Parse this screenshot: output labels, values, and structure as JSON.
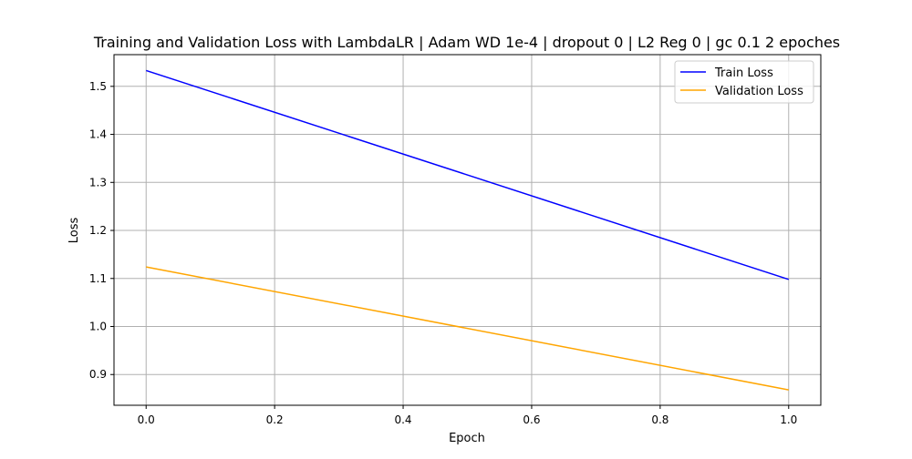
{
  "chart_data": {
    "type": "line",
    "title": "Training and Validation Loss with LambdaLR | Adam WD 1e-4 | dropout 0 | L2 Reg 0 | gc 0.1 2 epoches",
    "xlabel": "Epoch",
    "ylabel": "Loss",
    "xlim": [
      -0.05,
      1.05
    ],
    "ylim": [
      0.836,
      1.566
    ],
    "xticks": [
      0.0,
      0.2,
      0.4,
      0.6,
      0.8,
      1.0
    ],
    "xtick_labels": [
      "0.0",
      "0.2",
      "0.4",
      "0.6",
      "0.8",
      "1.0"
    ],
    "yticks": [
      0.9,
      1.0,
      1.1,
      1.2,
      1.3,
      1.4,
      1.5
    ],
    "ytick_labels": [
      "0.9",
      "1.0",
      "1.1",
      "1.2",
      "1.3",
      "1.4",
      "1.5"
    ],
    "grid": true,
    "legend_position": "top-right",
    "x": [
      0,
      1
    ],
    "series": [
      {
        "name": "Train Loss",
        "values": [
          1.533,
          1.098
        ],
        "color": "#0000ff"
      },
      {
        "name": "Validation Loss",
        "values": [
          1.124,
          0.868
        ],
        "color": "#ffa500"
      }
    ]
  }
}
